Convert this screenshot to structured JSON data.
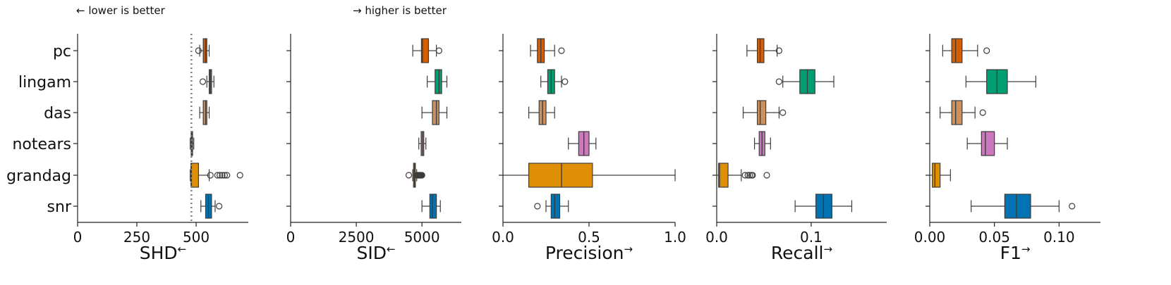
{
  "annotations": {
    "lower": "← lower is better",
    "higher": "→ higher is better"
  },
  "colors": {
    "pc": "#d55e00",
    "lingam": "#029e73",
    "das": "#ca9161",
    "notears": "#cc78bc",
    "grandag": "#de8f05",
    "snr": "#0173b2"
  },
  "categories": [
    "pc",
    "lingam",
    "das",
    "notears",
    "grandag",
    "snr"
  ],
  "chart_data": [
    {
      "type": "box",
      "title": "",
      "xlabel": "SHD",
      "arrow": "←",
      "xlim": [
        0,
        720
      ],
      "ticks": [
        0,
        250,
        500
      ],
      "tick_labels": [
        "0",
        "250",
        "500"
      ],
      "ref_line": 480,
      "boxes": [
        {
          "name": "pc",
          "whislo": 515,
          "q1": 530,
          "med": 540,
          "q3": 545,
          "whishi": 555,
          "fliers": [
            510
          ]
        },
        {
          "name": "lingam",
          "whislo": 545,
          "q1": 555,
          "med": 560,
          "q3": 565,
          "whishi": 575,
          "fliers": [
            528
          ]
        },
        {
          "name": "das",
          "whislo": 515,
          "q1": 530,
          "med": 540,
          "q3": 545,
          "whishi": 555,
          "fliers": []
        },
        {
          "name": "notears",
          "whislo": 475,
          "q1": 479,
          "med": 482,
          "q3": 485,
          "whishi": 490,
          "fliers": []
        },
        {
          "name": "grandag",
          "whislo": 475,
          "q1": 478,
          "med": 480,
          "q3": 510,
          "whishi": 555,
          "fliers": [
            560,
            590,
            600,
            610,
            620,
            630,
            685
          ]
        },
        {
          "name": "snr",
          "whislo": 520,
          "q1": 540,
          "med": 552,
          "q3": 565,
          "whishi": 580,
          "fliers": [
            597
          ]
        }
      ]
    },
    {
      "type": "box",
      "xlabel": "SID",
      "arrow": "←",
      "xlim": [
        0,
        6500
      ],
      "ticks": [
        0,
        2500,
        5000
      ],
      "tick_labels": [
        "0",
        "2500",
        "5000"
      ],
      "boxes": [
        {
          "name": "pc",
          "whislo": 4650,
          "q1": 4980,
          "med": 5020,
          "q3": 5250,
          "whishi": 5550,
          "fliers": [
            5650
          ]
        },
        {
          "name": "lingam",
          "whislo": 5200,
          "q1": 5500,
          "med": 5650,
          "q3": 5750,
          "whishi": 5950,
          "fliers": []
        },
        {
          "name": "das",
          "whislo": 5000,
          "q1": 5400,
          "med": 5550,
          "q3": 5650,
          "whishi": 5950,
          "fliers": []
        },
        {
          "name": "notears",
          "whislo": 4880,
          "q1": 4970,
          "med": 5020,
          "q3": 5070,
          "whishi": 5150,
          "fliers": []
        },
        {
          "name": "grandag",
          "whislo": 4650,
          "q1": 4680,
          "med": 4720,
          "q3": 4750,
          "whishi": 4800,
          "fliers": [
            4500,
            4820,
            4840,
            4860,
            4880,
            4900,
            4920,
            4940,
            4960,
            4980,
            5000
          ]
        },
        {
          "name": "snr",
          "whislo": 5000,
          "q1": 5300,
          "med": 5400,
          "q3": 5550,
          "whishi": 5700,
          "fliers": []
        }
      ]
    },
    {
      "type": "box",
      "xlabel": "Precision",
      "arrow": "→",
      "xlim": [
        0,
        1.0
      ],
      "ticks": [
        0,
        0.5,
        1.0
      ],
      "tick_labels": [
        "0.0",
        "0.5",
        "1.0"
      ],
      "boxes": [
        {
          "name": "pc",
          "whislo": 0.16,
          "q1": 0.2,
          "med": 0.22,
          "q3": 0.24,
          "whishi": 0.3,
          "fliers": [
            0.34
          ]
        },
        {
          "name": "lingam",
          "whislo": 0.22,
          "q1": 0.26,
          "med": 0.28,
          "q3": 0.3,
          "whishi": 0.34,
          "fliers": [
            0.36
          ]
        },
        {
          "name": "das",
          "whislo": 0.15,
          "q1": 0.21,
          "med": 0.23,
          "q3": 0.25,
          "whishi": 0.3,
          "fliers": []
        },
        {
          "name": "notears",
          "whislo": 0.38,
          "q1": 0.44,
          "med": 0.47,
          "q3": 0.5,
          "whishi": 0.54,
          "fliers": []
        },
        {
          "name": "grandag",
          "whislo": 0.0,
          "q1": 0.15,
          "med": 0.34,
          "q3": 0.52,
          "whishi": 1.0,
          "fliers": []
        },
        {
          "name": "snr",
          "whislo": 0.25,
          "q1": 0.28,
          "med": 0.3,
          "q3": 0.33,
          "whishi": 0.38,
          "fliers": [
            0.2
          ]
        }
      ]
    },
    {
      "type": "box",
      "xlabel": "Recall",
      "arrow": "→",
      "xlim": [
        0,
        0.18
      ],
      "ticks": [
        0,
        0.1
      ],
      "tick_labels": [
        "0.0",
        "0.1"
      ],
      "boxes": [
        {
          "name": "pc",
          "whislo": 0.032,
          "q1": 0.043,
          "med": 0.046,
          "q3": 0.05,
          "whishi": 0.064,
          "fliers": [
            0.066
          ]
        },
        {
          "name": "lingam",
          "whislo": 0.07,
          "q1": 0.088,
          "med": 0.096,
          "q3": 0.104,
          "whishi": 0.124,
          "fliers": [
            0.066
          ]
        },
        {
          "name": "das",
          "whislo": 0.028,
          "q1": 0.043,
          "med": 0.046,
          "q3": 0.052,
          "whishi": 0.066,
          "fliers": [
            0.07
          ]
        },
        {
          "name": "notears",
          "whislo": 0.04,
          "q1": 0.045,
          "med": 0.048,
          "q3": 0.051,
          "whishi": 0.057,
          "fliers": []
        },
        {
          "name": "grandag",
          "whislo": 0.0,
          "q1": 0.002,
          "med": 0.003,
          "q3": 0.012,
          "whishi": 0.026,
          "fliers": [
            0.03,
            0.033,
            0.035,
            0.037,
            0.038,
            0.053
          ]
        },
        {
          "name": "snr",
          "whislo": 0.083,
          "q1": 0.105,
          "med": 0.113,
          "q3": 0.122,
          "whishi": 0.143,
          "fliers": []
        }
      ]
    },
    {
      "type": "box",
      "xlabel": "F1",
      "arrow": "→",
      "xlim": [
        0,
        0.132
      ],
      "ticks": [
        0,
        0.05,
        0.1
      ],
      "tick_labels": [
        "0.00",
        "0.05",
        "0.10"
      ],
      "boxes": [
        {
          "name": "pc",
          "whislo": 0.01,
          "q1": 0.017,
          "med": 0.02,
          "q3": 0.025,
          "whishi": 0.037,
          "fliers": [
            0.044
          ]
        },
        {
          "name": "lingam",
          "whislo": 0.028,
          "q1": 0.044,
          "med": 0.052,
          "q3": 0.06,
          "whishi": 0.082,
          "fliers": []
        },
        {
          "name": "das",
          "whislo": 0.008,
          "q1": 0.017,
          "med": 0.02,
          "q3": 0.025,
          "whishi": 0.035,
          "fliers": [
            0.041
          ]
        },
        {
          "name": "notears",
          "whislo": 0.029,
          "q1": 0.04,
          "med": 0.043,
          "q3": 0.05,
          "whishi": 0.06,
          "fliers": []
        },
        {
          "name": "grandag",
          "whislo": 0.0,
          "q1": 0.002,
          "med": 0.004,
          "q3": 0.008,
          "whishi": 0.016,
          "fliers": []
        },
        {
          "name": "snr",
          "whislo": 0.032,
          "q1": 0.058,
          "med": 0.067,
          "q3": 0.078,
          "whishi": 0.1,
          "fliers": [
            0.11
          ]
        }
      ]
    }
  ]
}
